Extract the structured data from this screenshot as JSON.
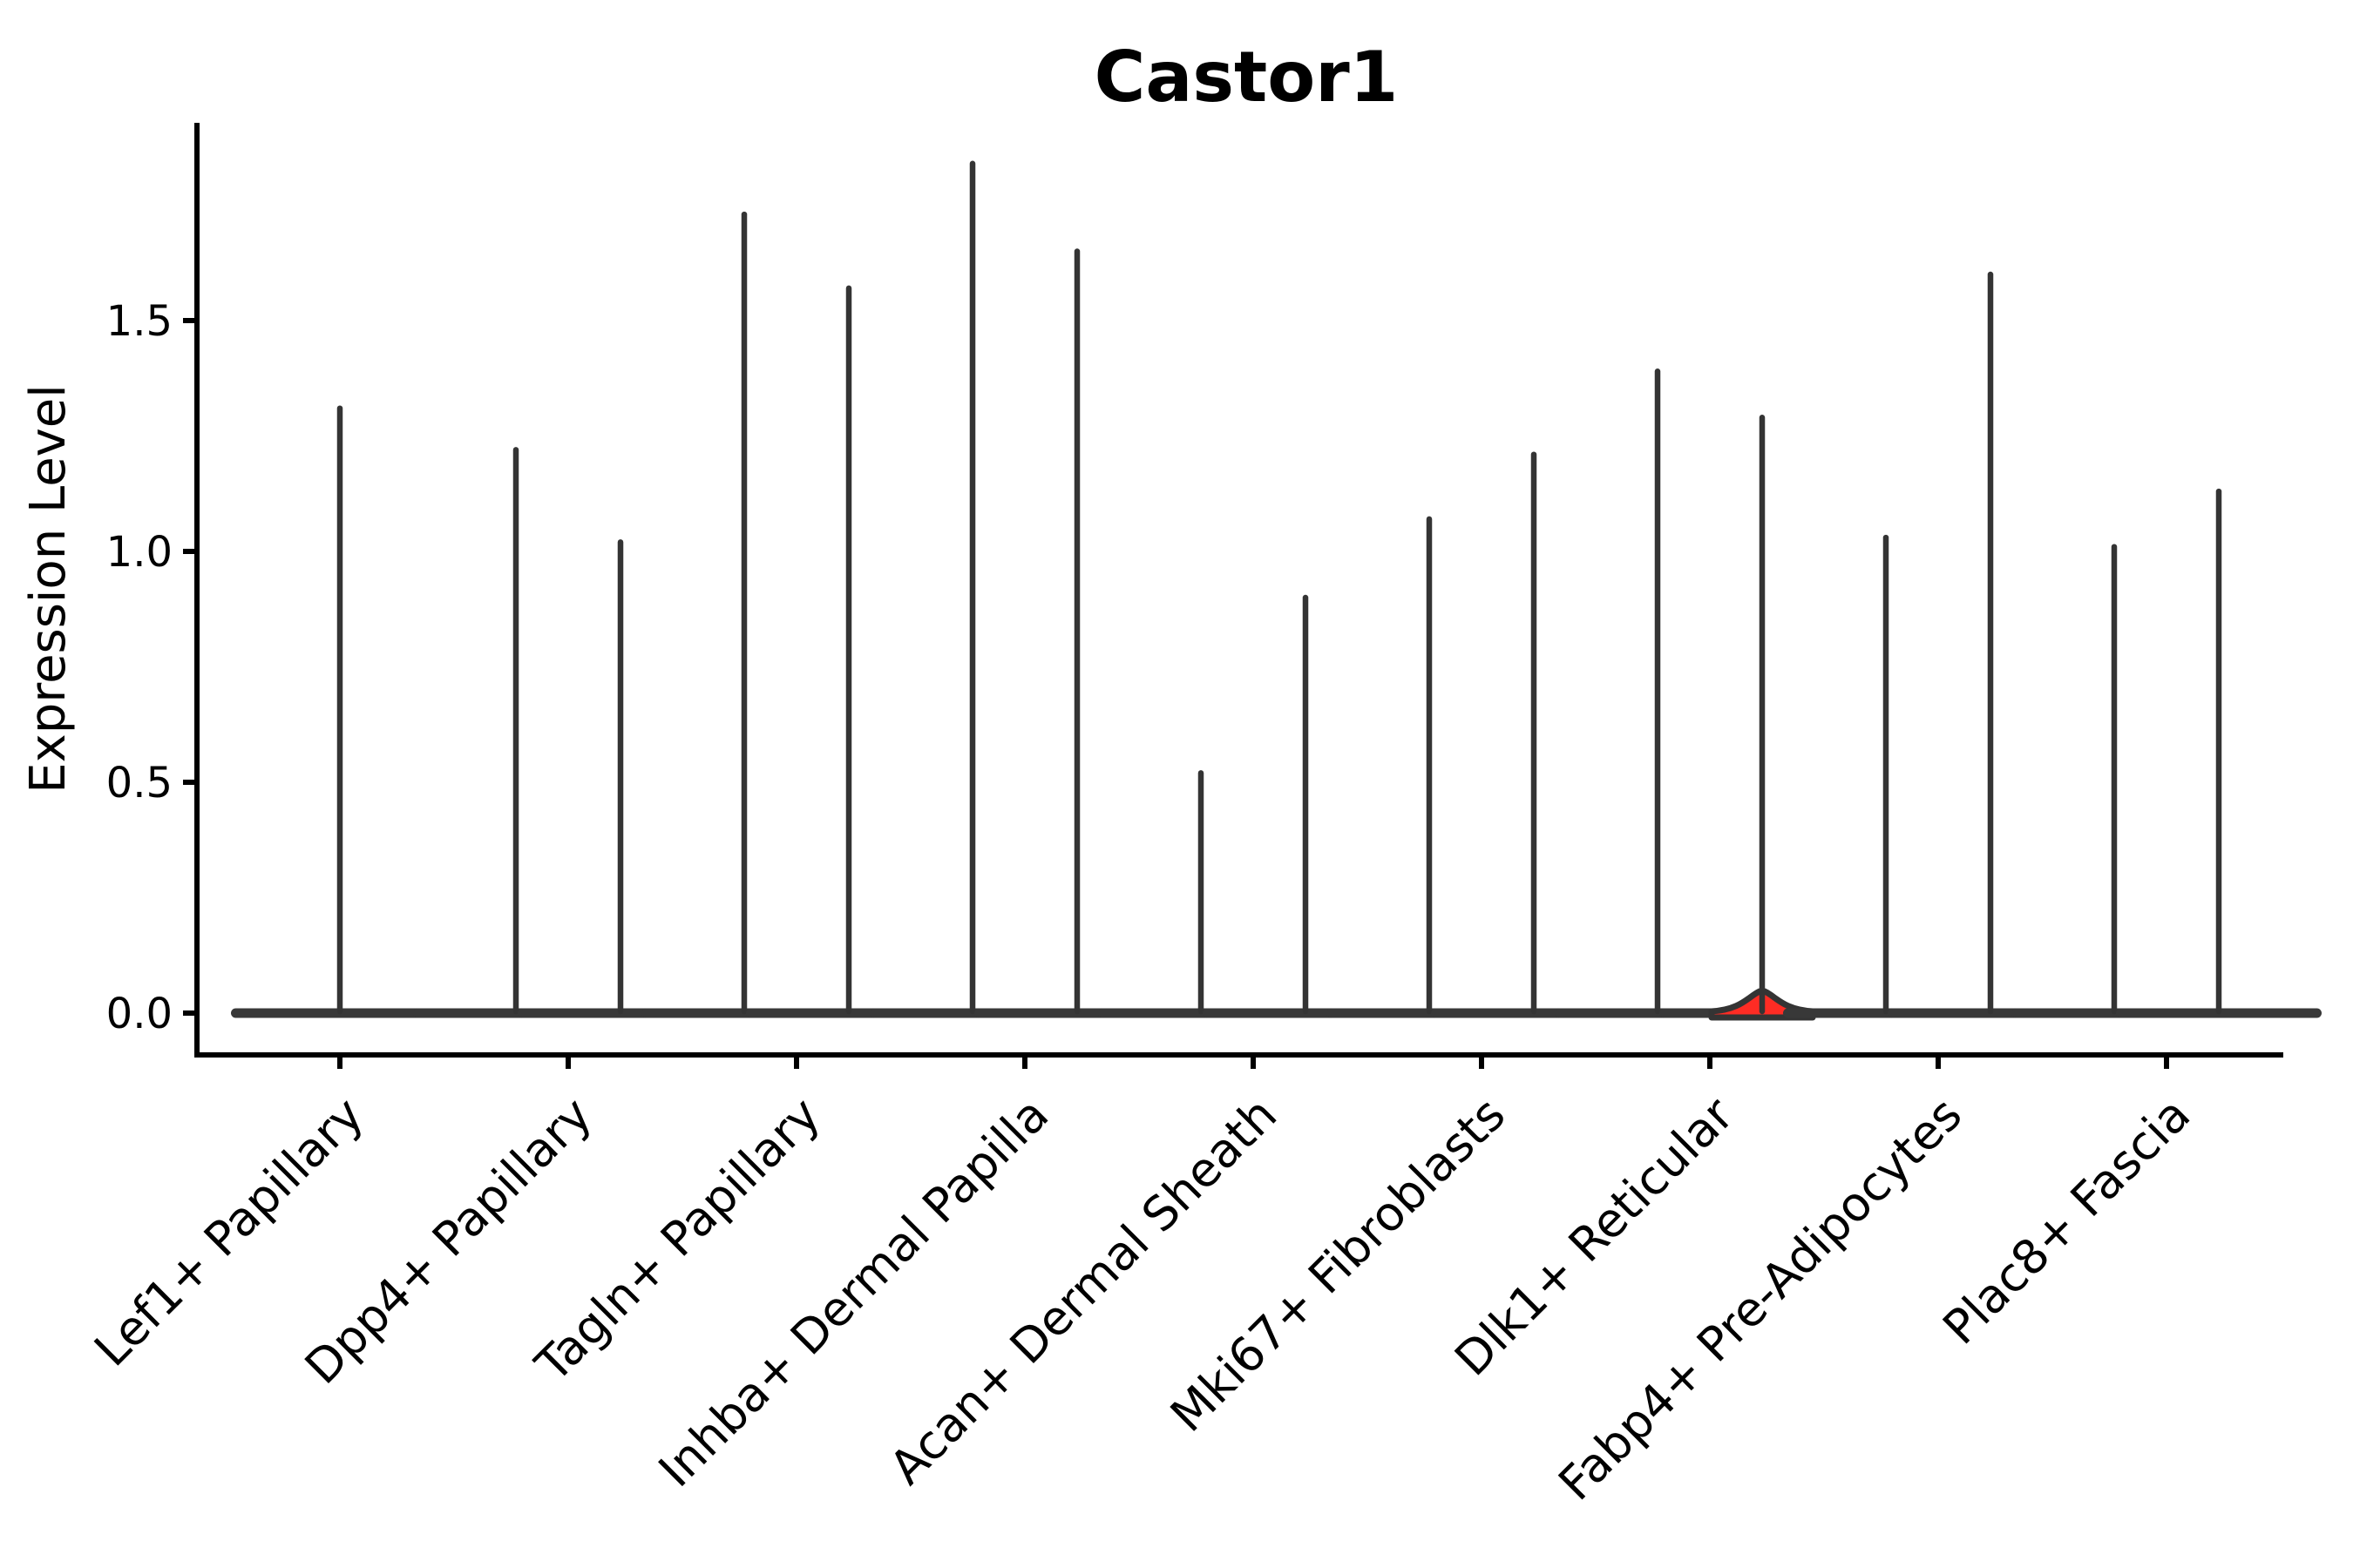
{
  "title": "Castor1",
  "chart_data": {
    "type": "violin",
    "title": "Castor1",
    "xlabel": "",
    "ylabel": "Expression Level",
    "ylim": [
      -0.08,
      1.93
    ],
    "yticks": [
      0.0,
      0.5,
      1.0,
      1.5
    ],
    "ytick_labels": [
      "0.0",
      "0.5",
      "1.0",
      "1.5"
    ],
    "grid": false,
    "legend": "none",
    "x_tick_rotation_degrees": 45,
    "categories": [
      "Lef1+ Papillary",
      "Dpp4+ Papillary",
      "Tagln+ Papillary",
      "Inhba+ Dermal Papilla",
      "Acan+ Dermal Sheath",
      "Mki67+ Fibroblasts",
      "Dlk1+ Reticular",
      "Fabp4+ Pre-Adipocytes",
      "Plac8+ Fascia"
    ],
    "violin_description": "Each category shows flat violin bodies at expression 0 with a thin spike up to the maximum expression; Lef1+ Papillary has one centered violin, all other categories have two side-by-side violins. Only the right violin of Dlk1+ Reticular shows a visible red density bump near 0.",
    "violins": [
      {
        "category": "Lef1+ Papillary",
        "category_index": 0,
        "slot": "full",
        "max": 1.31
      },
      {
        "category": "Dpp4+ Papillary",
        "category_index": 1,
        "slot": "left",
        "max": 1.22
      },
      {
        "category": "Dpp4+ Papillary",
        "category_index": 1,
        "slot": "right",
        "max": 1.02
      },
      {
        "category": "Tagln+ Papillary",
        "category_index": 2,
        "slot": "left",
        "max": 1.73
      },
      {
        "category": "Tagln+ Papillary",
        "category_index": 2,
        "slot": "right",
        "max": 1.57
      },
      {
        "category": "Inhba+ Dermal Papilla",
        "category_index": 3,
        "slot": "left",
        "max": 1.84
      },
      {
        "category": "Inhba+ Dermal Papilla",
        "category_index": 3,
        "slot": "right",
        "max": 1.65
      },
      {
        "category": "Acan+ Dermal Sheath",
        "category_index": 4,
        "slot": "left",
        "max": 0.52
      },
      {
        "category": "Acan+ Dermal Sheath",
        "category_index": 4,
        "slot": "right",
        "max": 0.9
      },
      {
        "category": "Mki67+ Fibroblasts",
        "category_index": 5,
        "slot": "left",
        "max": 1.07
      },
      {
        "category": "Mki67+ Fibroblasts",
        "category_index": 5,
        "slot": "right",
        "max": 1.21
      },
      {
        "category": "Dlk1+ Reticular",
        "category_index": 6,
        "slot": "left",
        "max": 1.39
      },
      {
        "category": "Dlk1+ Reticular",
        "category_index": 6,
        "slot": "right",
        "max": 1.29,
        "fill": "#fe2c24",
        "bump_max_density": 0.032
      },
      {
        "category": "Fabp4+ Pre-Adipocytes",
        "category_index": 7,
        "slot": "left",
        "max": 1.03
      },
      {
        "category": "Fabp4+ Pre-Adipocytes",
        "category_index": 7,
        "slot": "right",
        "max": 1.6
      },
      {
        "category": "Plac8+ Fascia",
        "category_index": 8,
        "slot": "left",
        "max": 1.01
      },
      {
        "category": "Plac8+ Fascia",
        "category_index": 8,
        "slot": "right",
        "max": 1.13
      }
    ],
    "colors": {
      "background": "#ffffff",
      "axis": "#000000",
      "violin_outline": "#383838",
      "spike": "#343434",
      "highlight_fill": "#fe2c24"
    }
  }
}
